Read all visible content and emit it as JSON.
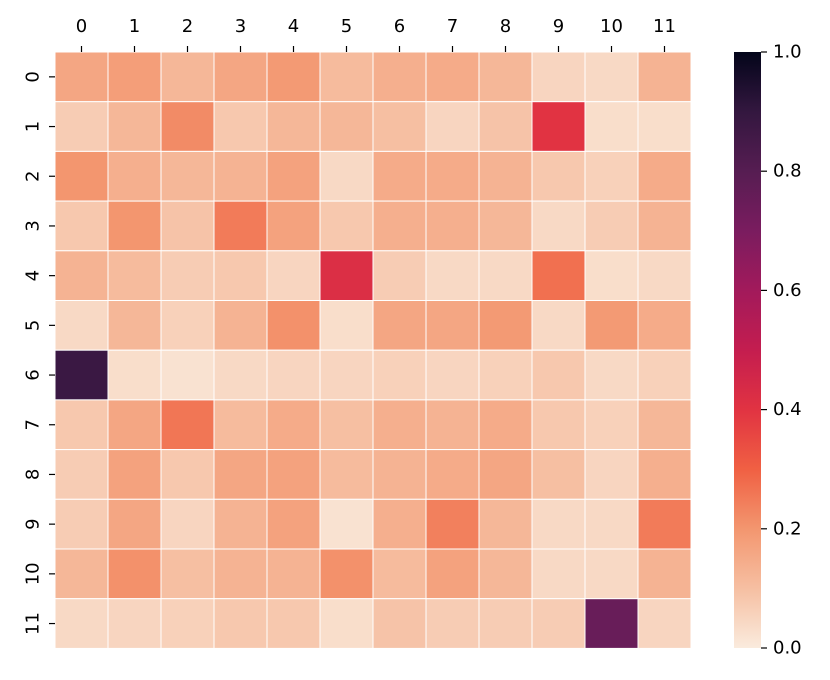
{
  "chart_data": {
    "type": "heatmap",
    "title": "",
    "xlabel": "",
    "ylabel": "",
    "x_categories": [
      "0",
      "1",
      "2",
      "3",
      "4",
      "5",
      "6",
      "7",
      "8",
      "9",
      "10",
      "11"
    ],
    "y_categories": [
      "0",
      "1",
      "2",
      "3",
      "4",
      "5",
      "6",
      "7",
      "8",
      "9",
      "10",
      "11"
    ],
    "x_axis_position": "top",
    "values": [
      [
        0.16,
        0.18,
        0.12,
        0.16,
        0.19,
        0.11,
        0.14,
        0.15,
        0.12,
        0.05,
        0.04,
        0.13
      ],
      [
        0.07,
        0.12,
        0.22,
        0.08,
        0.12,
        0.12,
        0.1,
        0.05,
        0.09,
        0.4,
        0.03,
        0.03
      ],
      [
        0.2,
        0.14,
        0.12,
        0.13,
        0.17,
        0.04,
        0.15,
        0.15,
        0.13,
        0.08,
        0.06,
        0.15
      ],
      [
        0.08,
        0.2,
        0.09,
        0.25,
        0.17,
        0.08,
        0.14,
        0.14,
        0.12,
        0.04,
        0.07,
        0.13
      ],
      [
        0.13,
        0.11,
        0.07,
        0.08,
        0.05,
        0.42,
        0.07,
        0.04,
        0.04,
        0.27,
        0.03,
        0.04
      ],
      [
        0.04,
        0.12,
        0.06,
        0.13,
        0.21,
        0.03,
        0.16,
        0.16,
        0.19,
        0.04,
        0.19,
        0.15
      ],
      [
        0.88,
        0.03,
        0.02,
        0.04,
        0.05,
        0.05,
        0.06,
        0.05,
        0.06,
        0.08,
        0.04,
        0.06
      ],
      [
        0.08,
        0.16,
        0.26,
        0.11,
        0.15,
        0.1,
        0.14,
        0.13,
        0.15,
        0.08,
        0.06,
        0.12
      ],
      [
        0.07,
        0.17,
        0.08,
        0.16,
        0.17,
        0.11,
        0.13,
        0.15,
        0.16,
        0.1,
        0.05,
        0.14
      ],
      [
        0.07,
        0.16,
        0.05,
        0.13,
        0.17,
        0.02,
        0.14,
        0.24,
        0.12,
        0.04,
        0.04,
        0.25
      ],
      [
        0.12,
        0.21,
        0.1,
        0.13,
        0.13,
        0.21,
        0.11,
        0.17,
        0.12,
        0.04,
        0.04,
        0.13
      ],
      [
        0.04,
        0.05,
        0.06,
        0.08,
        0.08,
        0.03,
        0.09,
        0.07,
        0.07,
        0.07,
        0.75,
        0.05
      ]
    ],
    "colormap": "rocket_r",
    "colorbar": {
      "range": [
        0.0,
        1.0
      ],
      "ticks": [
        0.0,
        0.2,
        0.4,
        0.6,
        0.8,
        1.0
      ],
      "tick_labels": [
        "0.0",
        "0.2",
        "0.4",
        "0.6",
        "0.8",
        "1.0"
      ],
      "position": "right"
    },
    "grid_lines": true,
    "grid_line_color": "#ffffff"
  }
}
